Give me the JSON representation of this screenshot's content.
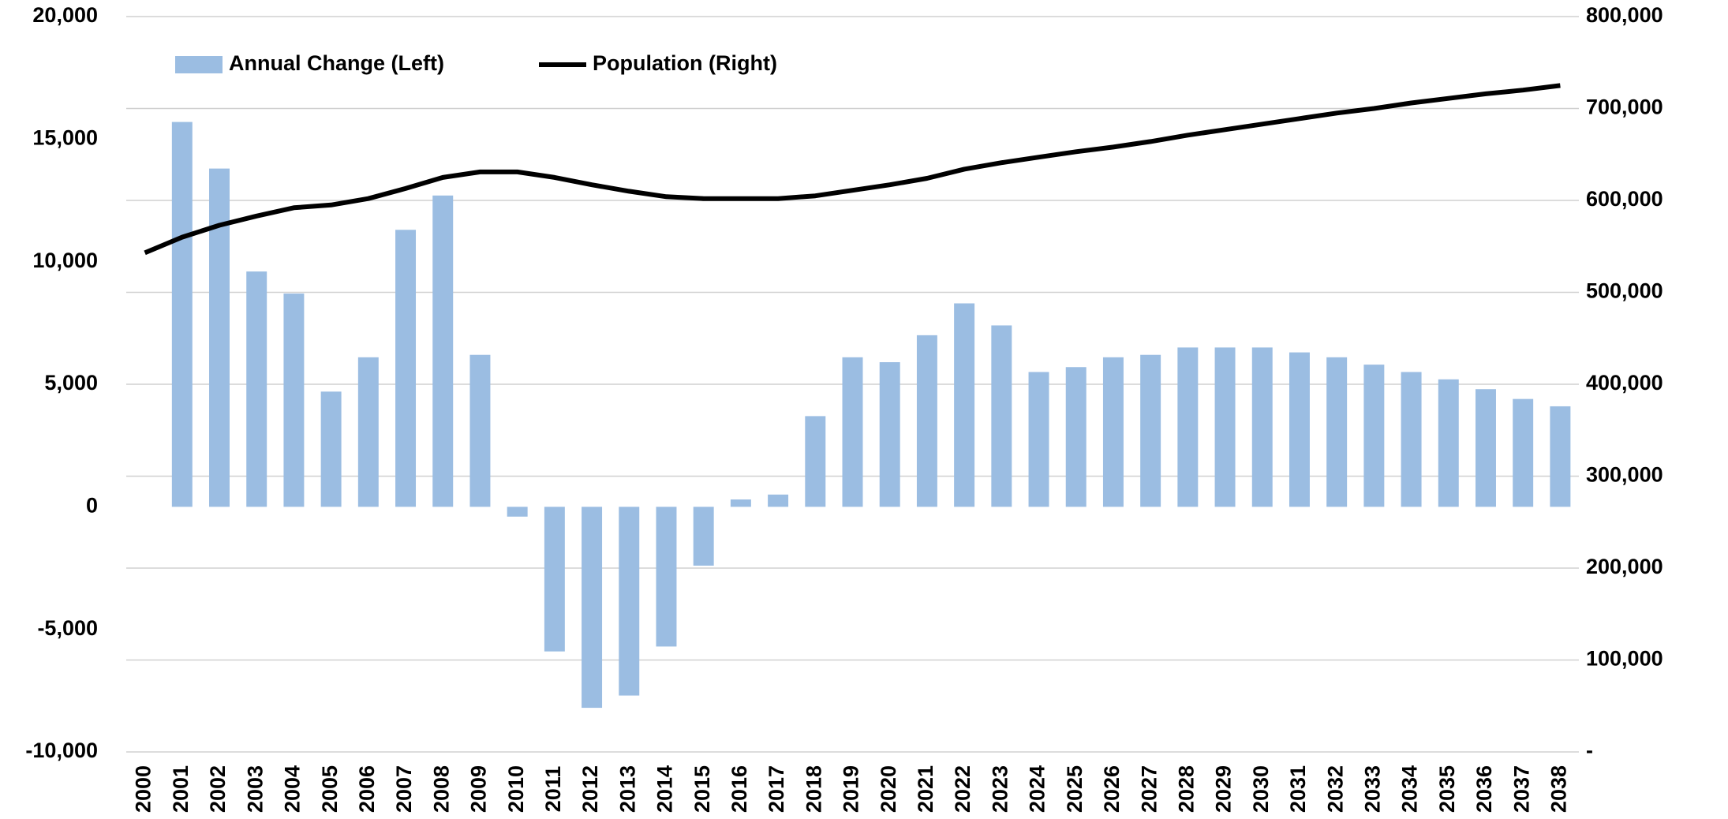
{
  "chart_data": {
    "type": "bar_line",
    "categories": [
      "2000",
      "2001",
      "2002",
      "2003",
      "2004",
      "2005",
      "2006",
      "2007",
      "2008",
      "2009",
      "2010",
      "2011",
      "2012",
      "2013",
      "2014",
      "2015",
      "2016",
      "2017",
      "2018",
      "2019",
      "2020",
      "2021",
      "2022",
      "2023",
      "2024",
      "2025",
      "2026",
      "2027",
      "2028",
      "2029",
      "2030",
      "2031",
      "2032",
      "2033",
      "2034",
      "2035",
      "2036",
      "2037",
      "2038"
    ],
    "series": [
      {
        "name": "Annual Change (Left)",
        "type": "bar",
        "axis": "y",
        "color": "#9bbde2",
        "values": [
          null,
          15700,
          13800,
          9600,
          8700,
          4700,
          6100,
          11300,
          12700,
          6200,
          -400,
          -5900,
          -8200,
          -7700,
          -5700,
          -2400,
          300,
          500,
          3700,
          6100,
          5900,
          7000,
          8300,
          7400,
          5500,
          5700,
          6100,
          6200,
          6500,
          6500,
          6500,
          6300,
          6100,
          5800,
          5500,
          5200,
          4800,
          4400,
          4100
        ]
      },
      {
        "name": "Population (Right)",
        "type": "line",
        "axis": "y2",
        "color": "#000000",
        "values": [
          543000,
          560000,
          573000,
          583000,
          592000,
          595000,
          602000,
          613000,
          625000,
          631000,
          631000,
          625000,
          617000,
          610000,
          604000,
          602000,
          602000,
          602000,
          605000,
          611000,
          617000,
          624000,
          634000,
          641000,
          647000,
          653000,
          658000,
          664000,
          671000,
          677000,
          683000,
          689000,
          695000,
          700000,
          706000,
          711000,
          716000,
          720000,
          725000
        ]
      }
    ],
    "ylim": [
      -10000,
      20000
    ],
    "yticks": [
      {
        "value": -10000,
        "label": "-10,000"
      },
      {
        "value": -5000,
        "label": "-5,000"
      },
      0,
      {
        "value": 5000,
        "label": "5,000"
      },
      {
        "value": 10000,
        "label": "10,000"
      },
      {
        "value": 15000,
        "label": "15,000"
      },
      {
        "value": 20000,
        "label": "20,000"
      }
    ],
    "y2lim": [
      0,
      800000
    ],
    "y2ticks": [
      {
        "value": 0,
        "label": "-"
      },
      {
        "value": 100000,
        "label": "100,000"
      },
      {
        "value": 200000,
        "label": "200,000"
      },
      {
        "value": 300000,
        "label": "300,000"
      },
      {
        "value": 400000,
        "label": "400,000"
      },
      {
        "value": 500000,
        "label": "500,000"
      },
      {
        "value": 600000,
        "label": "600,000"
      },
      {
        "value": 700000,
        "label": "700,000"
      },
      {
        "value": 800000,
        "label": "800,000"
      }
    ],
    "grid": true,
    "legend": "top"
  }
}
